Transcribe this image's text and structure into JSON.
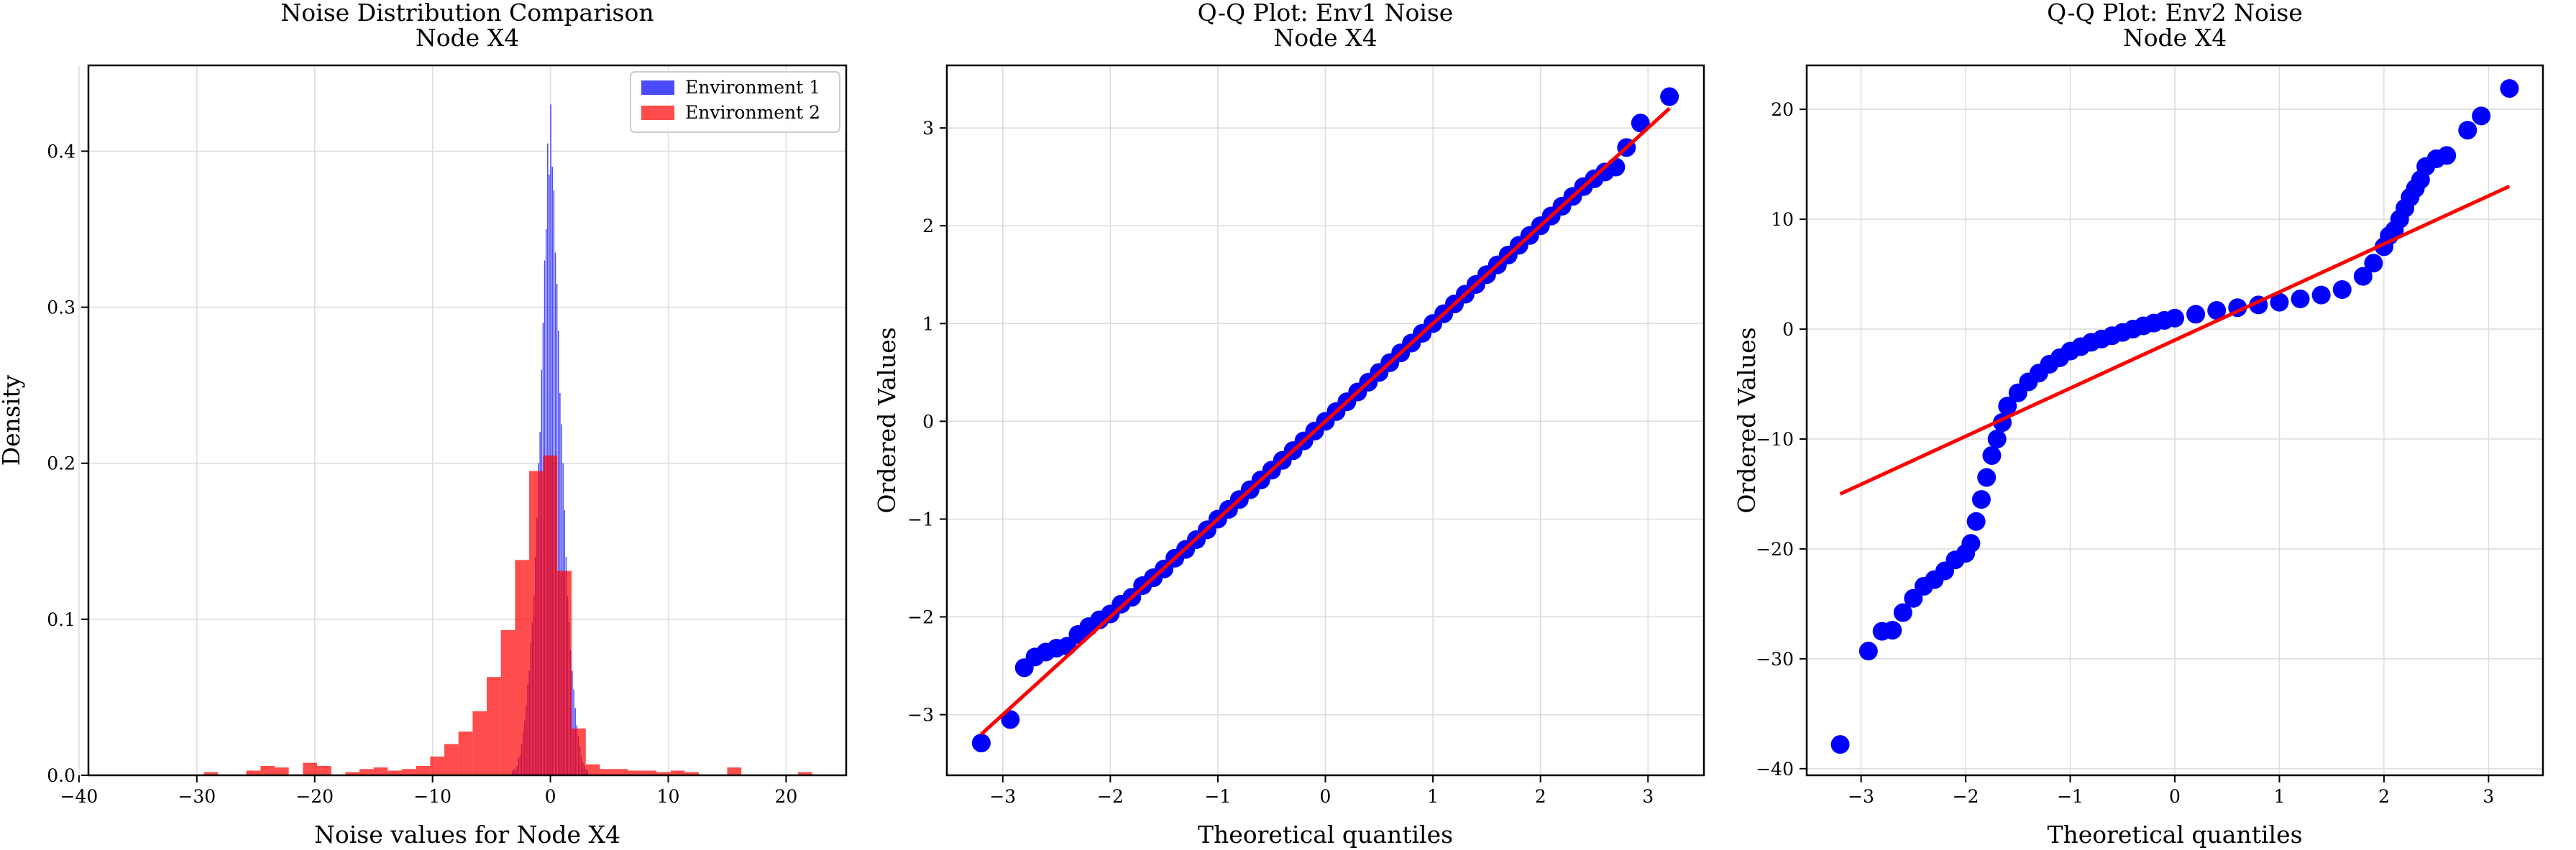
{
  "chart_data": [
    {
      "type": "bar",
      "title": "Noise Distribution Comparison",
      "subtitle": "Node X4",
      "xlabel": "Noise values for Node X4",
      "ylabel": "Density",
      "xlim": [
        -39.2,
        25.1
      ],
      "ylim": [
        0,
        0.455
      ],
      "xticks": [
        -40,
        -30,
        -20,
        -10,
        0,
        10,
        20
      ],
      "yticks": [
        0.0,
        0.1,
        0.2,
        0.3,
        0.4
      ],
      "grid": true,
      "legend": "top-right",
      "series": [
        {
          "name": "Environment 1",
          "color": "#0000ff",
          "bin_width": 0.13,
          "x": [
            -3.2,
            -3.07,
            -2.94,
            -2.81,
            -2.68,
            -2.55,
            -2.42,
            -2.29,
            -2.16,
            -2.03,
            -1.9,
            -1.77,
            -1.64,
            -1.51,
            -1.38,
            -1.25,
            -1.12,
            -0.99,
            -0.86,
            -0.73,
            -0.6,
            -0.47,
            -0.34,
            -0.21,
            -0.08,
            0.05,
            0.18,
            0.31,
            0.44,
            0.57,
            0.7,
            0.83,
            0.96,
            1.09,
            1.22,
            1.35,
            1.48,
            1.61,
            1.74,
            1.87,
            2.0,
            2.13,
            2.26,
            2.39,
            2.52,
            2.65,
            2.78,
            2.91,
            3.04,
            3.17
          ],
          "values": [
            0.003,
            0.004,
            0.004,
            0.006,
            0.011,
            0.013,
            0.02,
            0.028,
            0.035,
            0.045,
            0.058,
            0.067,
            0.085,
            0.098,
            0.115,
            0.14,
            0.165,
            0.2,
            0.22,
            0.26,
            0.29,
            0.33,
            0.35,
            0.405,
            0.385,
            0.43,
            0.39,
            0.375,
            0.335,
            0.315,
            0.285,
            0.245,
            0.225,
            0.2,
            0.17,
            0.14,
            0.115,
            0.098,
            0.08,
            0.067,
            0.055,
            0.043,
            0.032,
            0.025,
            0.018,
            0.012,
            0.008,
            0.006,
            0.004,
            0.003
          ]
        },
        {
          "name": "Environment 2",
          "color": "#ff0000",
          "bin_width": 1.2,
          "x": [
            -38.4,
            -37.2,
            -36.0,
            -34.8,
            -33.6,
            -32.4,
            -31.2,
            -30.0,
            -28.8,
            -27.6,
            -26.4,
            -25.2,
            -24.0,
            -22.8,
            -21.6,
            -20.4,
            -19.2,
            -18.0,
            -16.8,
            -15.6,
            -14.4,
            -13.2,
            -12.0,
            -10.8,
            -9.6,
            -8.4,
            -7.2,
            -6.0,
            -4.8,
            -3.6,
            -2.4,
            -1.2,
            0.0,
            1.2,
            2.4,
            3.6,
            4.8,
            6.0,
            7.2,
            8.4,
            9.6,
            10.8,
            12.0,
            13.2,
            14.4,
            15.6,
            16.8,
            18.0,
            19.2,
            20.4,
            21.6
          ],
          "values": [
            0.0,
            0.0,
            0.0,
            0.0,
            0.0,
            0.0,
            0.0,
            0.0,
            0.002,
            0.0,
            0.0,
            0.003,
            0.006,
            0.005,
            0.0,
            0.008,
            0.006,
            0.0,
            0.002,
            0.004,
            0.005,
            0.003,
            0.004,
            0.006,
            0.012,
            0.02,
            0.028,
            0.041,
            0.063,
            0.093,
            0.138,
            0.195,
            0.205,
            0.131,
            0.03,
            0.007,
            0.004,
            0.004,
            0.003,
            0.003,
            0.002,
            0.003,
            0.002,
            0.0,
            0.0,
            0.005,
            0.0,
            0.0,
            0.0,
            0.0,
            0.002
          ]
        }
      ]
    },
    {
      "type": "scatter",
      "title": "Q-Q Plot: Env1 Noise",
      "subtitle": "Node X4",
      "xlabel": "Theoretical quantiles",
      "ylabel": "Ordered Values",
      "xlim": [
        -3.52,
        3.52
      ],
      "ylim": [
        -3.62,
        3.64
      ],
      "xticks": [
        -3,
        -2,
        -1,
        0,
        1,
        2,
        3
      ],
      "yticks": [
        -3,
        -2,
        -1,
        0,
        1,
        2,
        3
      ],
      "grid": true,
      "marker_color": "#0000ff",
      "line_color": "#ff0000",
      "fit_line": {
        "x": [
          -3.2,
          3.2
        ],
        "y": [
          -3.2,
          3.2
        ]
      },
      "points": {
        "x": [
          -3.2,
          -2.93,
          -2.8,
          -2.7,
          -2.6,
          -2.5,
          -2.4,
          -2.3,
          -2.2,
          -2.1,
          -2.0,
          -1.9,
          -1.8,
          -1.7,
          -1.6,
          -1.5,
          -1.4,
          -1.3,
          -1.2,
          -1.1,
          -1.0,
          -0.9,
          -0.8,
          -0.7,
          -0.6,
          -0.5,
          -0.4,
          -0.3,
          -0.2,
          -0.1,
          0.0,
          0.1,
          0.2,
          0.3,
          0.4,
          0.5,
          0.6,
          0.7,
          0.8,
          0.9,
          1.0,
          1.1,
          1.2,
          1.3,
          1.4,
          1.5,
          1.6,
          1.7,
          1.8,
          1.9,
          2.0,
          2.1,
          2.2,
          2.3,
          2.4,
          2.5,
          2.6,
          2.7,
          2.8,
          2.93,
          3.2
        ],
        "y": [
          -3.29,
          -3.05,
          -2.52,
          -2.41,
          -2.36,
          -2.32,
          -2.3,
          -2.18,
          -2.1,
          -2.03,
          -1.97,
          -1.87,
          -1.8,
          -1.68,
          -1.6,
          -1.51,
          -1.4,
          -1.31,
          -1.21,
          -1.11,
          -1.0,
          -0.9,
          -0.8,
          -0.7,
          -0.6,
          -0.5,
          -0.4,
          -0.3,
          -0.2,
          -0.1,
          0.0,
          0.1,
          0.2,
          0.3,
          0.4,
          0.5,
          0.6,
          0.7,
          0.8,
          0.9,
          1.0,
          1.1,
          1.2,
          1.3,
          1.4,
          1.5,
          1.6,
          1.7,
          1.8,
          1.9,
          2.0,
          2.1,
          2.2,
          2.3,
          2.4,
          2.48,
          2.55,
          2.6,
          2.8,
          3.05,
          3.32
        ]
      }
    },
    {
      "type": "scatter",
      "title": "Q-Q Plot: Env2 Noise",
      "subtitle": "Node X4",
      "xlabel": "Theoretical quantiles",
      "ylabel": "Ordered Values",
      "xlim": [
        -3.52,
        3.52
      ],
      "ylim": [
        -40.6,
        24.0
      ],
      "xticks": [
        -3,
        -2,
        -1,
        0,
        1,
        2,
        3
      ],
      "yticks": [
        -40,
        -30,
        -20,
        -10,
        0,
        10,
        20
      ],
      "grid": true,
      "marker_color": "#0000ff",
      "line_color": "#ff0000",
      "fit_line": {
        "x": [
          -3.2,
          3.2
        ],
        "y": [
          -15.0,
          13.0
        ]
      },
      "points": {
        "x": [
          -3.2,
          -2.93,
          -2.8,
          -2.7,
          -2.6,
          -2.5,
          -2.4,
          -2.3,
          -2.2,
          -2.1,
          -2.0,
          -1.95,
          -1.9,
          -1.85,
          -1.8,
          -1.75,
          -1.7,
          -1.65,
          -1.6,
          -1.5,
          -1.4,
          -1.3,
          -1.2,
          -1.1,
          -1.0,
          -0.9,
          -0.8,
          -0.7,
          -0.6,
          -0.5,
          -0.4,
          -0.3,
          -0.2,
          -0.1,
          0.0,
          0.2,
          0.4,
          0.6,
          0.8,
          1.0,
          1.2,
          1.4,
          1.6,
          1.8,
          1.9,
          2.0,
          2.05,
          2.1,
          2.15,
          2.2,
          2.25,
          2.3,
          2.35,
          2.4,
          2.5,
          2.6,
          2.8,
          2.93,
          3.2
        ],
        "y": [
          -37.8,
          -29.3,
          -27.5,
          -27.4,
          -25.8,
          -24.5,
          -23.4,
          -22.8,
          -22.0,
          -21.0,
          -20.4,
          -19.5,
          -17.5,
          -15.5,
          -13.5,
          -11.5,
          -10.0,
          -8.5,
          -7.0,
          -5.8,
          -4.8,
          -4.0,
          -3.2,
          -2.6,
          -2.0,
          -1.6,
          -1.2,
          -0.9,
          -0.6,
          -0.3,
          0.0,
          0.3,
          0.55,
          0.8,
          1.0,
          1.35,
          1.7,
          1.95,
          2.2,
          2.45,
          2.75,
          3.1,
          3.6,
          4.8,
          6.0,
          7.5,
          8.5,
          9.0,
          10.0,
          11.0,
          12.0,
          12.8,
          13.6,
          14.8,
          15.5,
          15.8,
          18.1,
          19.4,
          21.9
        ]
      }
    }
  ]
}
